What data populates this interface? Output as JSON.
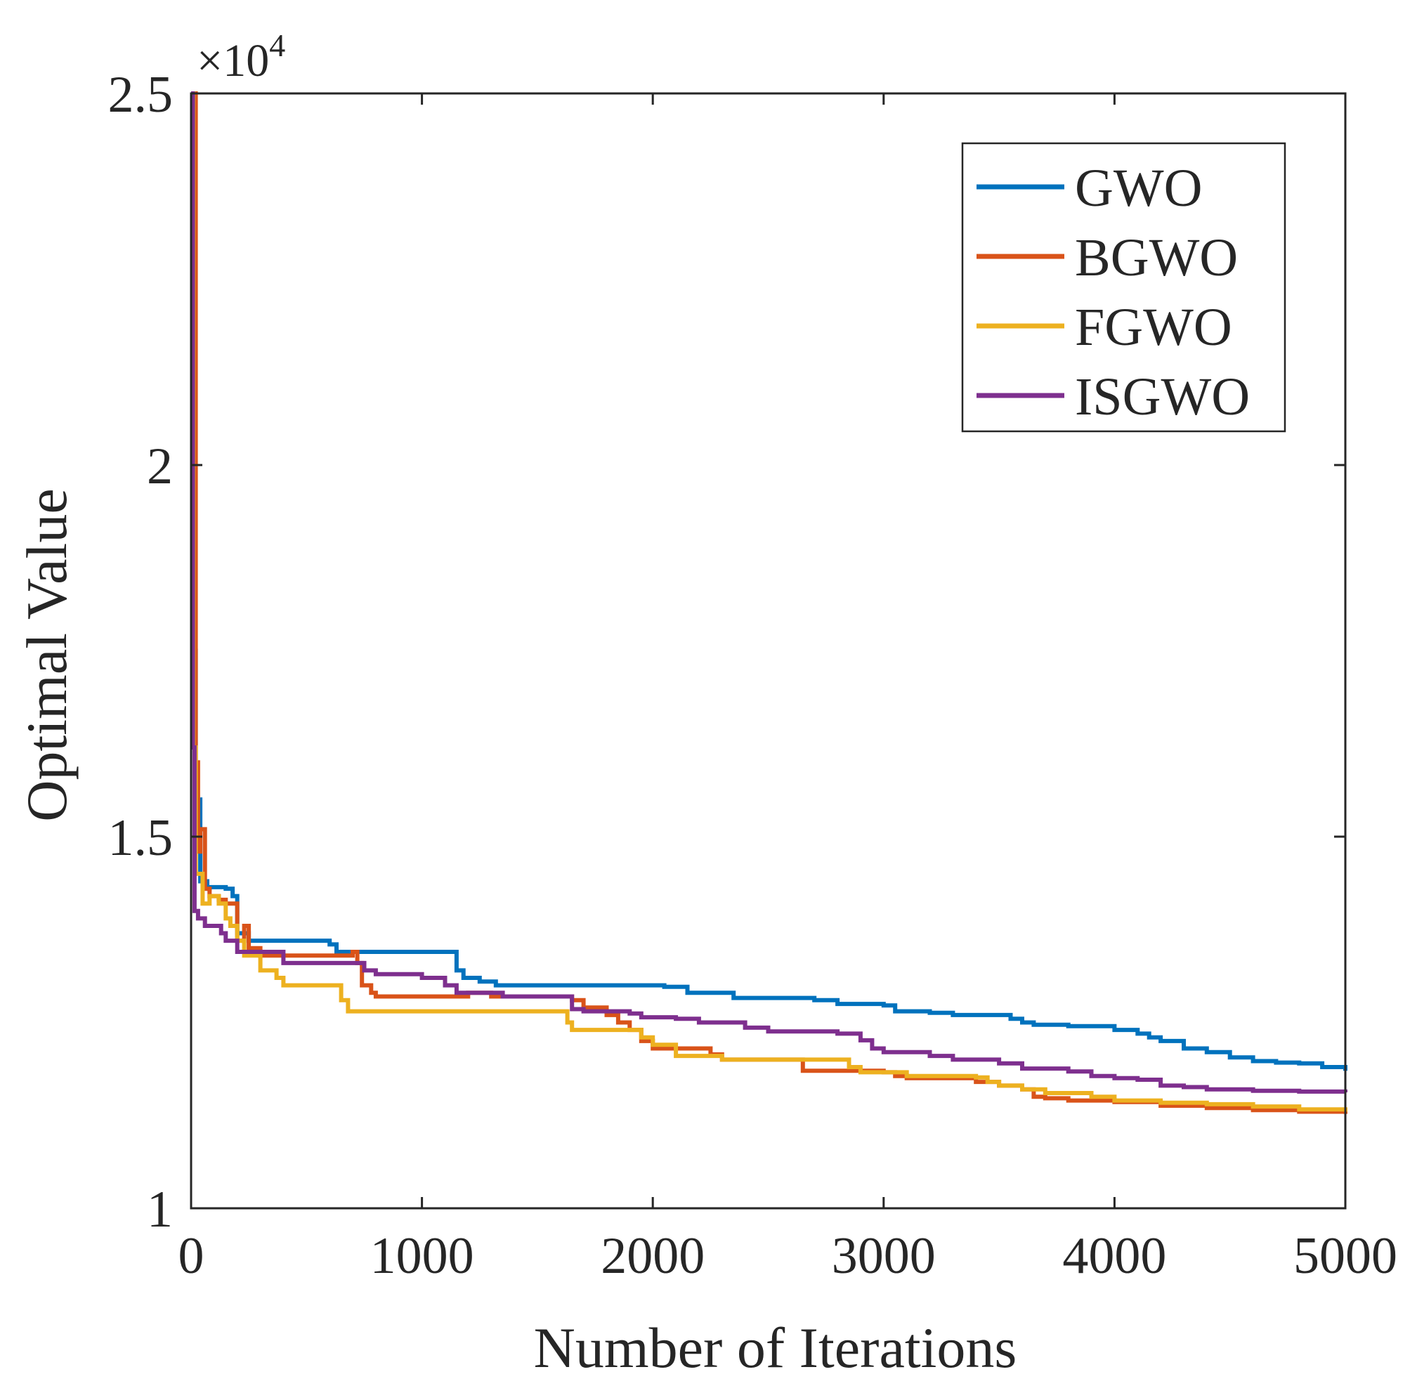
{
  "chart_data": {
    "type": "line",
    "title": "",
    "xlabel": "Number of Iterations",
    "ylabel": "Optimal Value",
    "y_multiplier": "×10",
    "y_multiplier_exponent": "4",
    "xlim": [
      0,
      5000
    ],
    "ylim": [
      1,
      2.5
    ],
    "x_ticks": [
      0,
      1000,
      2000,
      3000,
      4000,
      5000
    ],
    "x_tick_labels": [
      "0",
      "1000",
      "2000",
      "3000",
      "4000",
      "5000"
    ],
    "y_ticks": [
      1,
      1.5,
      2,
      2.5
    ],
    "y_tick_labels": [
      "1",
      "1.5",
      "2",
      "2.5"
    ],
    "grid": false,
    "legend_position": "top-right",
    "series": [
      {
        "name": "GWO",
        "color": "#0072BD",
        "x": [
          0,
          8,
          20,
          40,
          70,
          80,
          150,
          180,
          200,
          250,
          400,
          600,
          630,
          700,
          1150,
          1180,
          1250,
          1320,
          1500,
          2050,
          2150,
          2300,
          2350,
          2500,
          2700,
          2800,
          3000,
          3050,
          3200,
          3300,
          3500,
          3550,
          3600,
          3650,
          3800,
          4000,
          4100,
          4150,
          4200,
          4300,
          4400,
          4500,
          4600,
          4700,
          4800,
          4900,
          5000
        ],
        "y": [
          2.5,
          1.75,
          1.55,
          1.44,
          1.43,
          1.432,
          1.43,
          1.42,
          1.37,
          1.36,
          1.36,
          1.355,
          1.345,
          1.345,
          1.32,
          1.31,
          1.305,
          1.3,
          1.3,
          1.298,
          1.29,
          1.29,
          1.283,
          1.283,
          1.28,
          1.275,
          1.273,
          1.265,
          1.263,
          1.26,
          1.26,
          1.255,
          1.25,
          1.247,
          1.245,
          1.24,
          1.235,
          1.23,
          1.225,
          1.215,
          1.21,
          1.203,
          1.198,
          1.196,
          1.195,
          1.19,
          1.185
        ]
      },
      {
        "name": "BGWO",
        "color": "#D95319",
        "x": [
          0,
          20,
          30,
          40,
          60,
          80,
          120,
          150,
          200,
          230,
          250,
          300,
          500,
          700,
          720,
          740,
          780,
          800,
          1000,
          1150,
          1200,
          1300,
          1600,
          1650,
          1700,
          1800,
          1850,
          1900,
          1950,
          2000,
          2200,
          2250,
          2300,
          2600,
          2650,
          2700,
          3000,
          3050,
          3100,
          3400,
          3500,
          3600,
          3650,
          3700,
          3800,
          4000,
          4200,
          4400,
          4600,
          4800,
          5000
        ],
        "y": [
          2.5,
          1.6,
          1.48,
          1.51,
          1.43,
          1.42,
          1.415,
          1.41,
          1.36,
          1.38,
          1.35,
          1.34,
          1.34,
          1.345,
          1.33,
          1.3,
          1.29,
          1.285,
          1.285,
          1.285,
          1.29,
          1.285,
          1.285,
          1.28,
          1.27,
          1.26,
          1.25,
          1.24,
          1.225,
          1.215,
          1.215,
          1.207,
          1.2,
          1.2,
          1.185,
          1.185,
          1.183,
          1.178,
          1.175,
          1.17,
          1.165,
          1.16,
          1.15,
          1.148,
          1.145,
          1.143,
          1.138,
          1.135,
          1.132,
          1.13,
          1.127
        ]
      },
      {
        "name": "FGWO",
        "color": "#EDB120",
        "x": [
          0,
          10,
          20,
          50,
          80,
          120,
          150,
          170,
          200,
          230,
          300,
          370,
          400,
          600,
          650,
          680,
          1000,
          1200,
          1400,
          1600,
          1630,
          1650,
          1900,
          1950,
          2000,
          2100,
          2300,
          2600,
          2700,
          2800,
          2850,
          2900,
          3000,
          3100,
          3400,
          3450,
          3500,
          3600,
          3700,
          3900,
          4000,
          4200,
          4400,
          4600,
          4800,
          5000
        ],
        "y": [
          2.5,
          1.62,
          1.45,
          1.41,
          1.42,
          1.41,
          1.39,
          1.38,
          1.36,
          1.34,
          1.32,
          1.31,
          1.3,
          1.3,
          1.28,
          1.265,
          1.265,
          1.265,
          1.265,
          1.265,
          1.25,
          1.24,
          1.24,
          1.23,
          1.22,
          1.205,
          1.2,
          1.2,
          1.2,
          1.2,
          1.19,
          1.183,
          1.183,
          1.178,
          1.176,
          1.17,
          1.165,
          1.16,
          1.155,
          1.15,
          1.145,
          1.142,
          1.14,
          1.137,
          1.133,
          1.13
        ]
      },
      {
        "name": "ISGWO",
        "color": "#7E2F8E",
        "x": [
          0,
          8,
          15,
          30,
          60,
          120,
          130,
          150,
          200,
          300,
          400,
          700,
          750,
          800,
          1000,
          1100,
          1150,
          1300,
          1350,
          1600,
          1650,
          1700,
          1900,
          1950,
          2100,
          2200,
          2400,
          2500,
          2800,
          2900,
          2950,
          3000,
          3200,
          3300,
          3500,
          3600,
          3800,
          3900,
          4000,
          4100,
          4200,
          4300,
          4400,
          4500,
          4600,
          4800,
          5000
        ],
        "y": [
          2.5,
          1.62,
          1.4,
          1.39,
          1.38,
          1.38,
          1.37,
          1.36,
          1.345,
          1.345,
          1.33,
          1.33,
          1.32,
          1.315,
          1.31,
          1.3,
          1.29,
          1.29,
          1.285,
          1.285,
          1.268,
          1.265,
          1.262,
          1.257,
          1.255,
          1.25,
          1.243,
          1.238,
          1.235,
          1.226,
          1.215,
          1.21,
          1.205,
          1.2,
          1.195,
          1.188,
          1.184,
          1.178,
          1.175,
          1.173,
          1.165,
          1.163,
          1.16,
          1.16,
          1.158,
          1.157,
          1.156
        ]
      }
    ]
  }
}
